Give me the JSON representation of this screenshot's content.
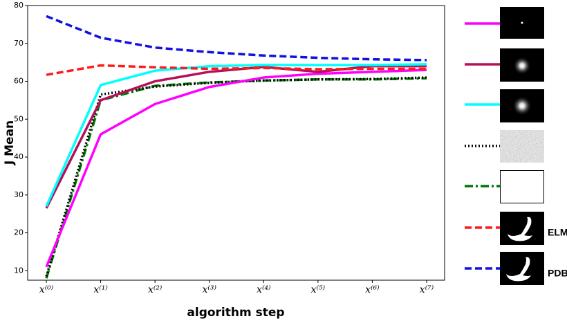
{
  "chart_data": {
    "type": "line",
    "x_label": "algorithm step",
    "y_label": "J Mean",
    "categories": [
      "x⁽⁰⁾",
      "x⁽¹⁾",
      "x⁽²⁾",
      "x⁽³⁾",
      "x⁽⁴⁾",
      "x⁽⁵⁾",
      "x⁽⁶⁾",
      "x⁽⁷⁾"
    ],
    "ylim": [
      7.5,
      80
    ],
    "yticks": [
      10,
      20,
      30,
      40,
      50,
      60,
      70,
      80
    ],
    "series": [
      {
        "name": null,
        "color": "#ff00ff",
        "style": "solid",
        "values": [
          11,
          46,
          54,
          58.5,
          61,
          62,
          62.5,
          63
        ]
      },
      {
        "name": null,
        "color": "#b5105a",
        "style": "solid",
        "values": [
          26.5,
          55,
          60,
          62.5,
          63.8,
          62.5,
          64,
          64
        ]
      },
      {
        "name": null,
        "color": "#00ffff",
        "style": "solid",
        "values": [
          27,
          59,
          62.8,
          64,
          64.3,
          64.3,
          64.3,
          64.5
        ]
      },
      {
        "name": null,
        "color": "#000000",
        "style": "dotted",
        "values": [
          8.5,
          56.5,
          58.6,
          59.6,
          60.2,
          60.5,
          60.6,
          61
        ]
      },
      {
        "name": null,
        "color": "#007700",
        "style": "dashdot",
        "values": [
          8,
          55,
          58.8,
          59.7,
          60.2,
          60.5,
          60.5,
          60.8
        ]
      },
      {
        "name": "ELM",
        "color": "#ff1a1a",
        "style": "dashed",
        "values": [
          61.7,
          64.2,
          63.7,
          63.3,
          63.5,
          63.2,
          63.3,
          63.3
        ]
      },
      {
        "name": "PDB",
        "color": "#1010e0",
        "style": "dashed",
        "values": [
          77.2,
          71.5,
          68.9,
          67.7,
          66.8,
          66.2,
          65.8,
          65.6
        ]
      }
    ]
  }
}
